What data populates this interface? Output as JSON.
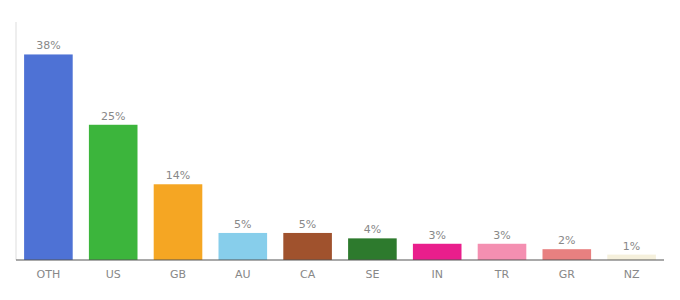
{
  "chart_data": {
    "type": "bar",
    "categories": [
      "OTH",
      "US",
      "GB",
      "AU",
      "CA",
      "SE",
      "IN",
      "TR",
      "GR",
      "NZ"
    ],
    "values": [
      38,
      25,
      14,
      5,
      5,
      4,
      3,
      3,
      2,
      1
    ],
    "value_labels": [
      "38%",
      "25%",
      "14%",
      "5%",
      "5%",
      "4%",
      "3%",
      "3%",
      "2%",
      "1%"
    ],
    "colors": [
      "#4e72d5",
      "#3cb53c",
      "#f5a623",
      "#87ceeb",
      "#a0522d",
      "#2d7a2d",
      "#e91e8c",
      "#f48fb1",
      "#e88080",
      "#f5f0dc"
    ],
    "ylim": [
      0,
      44
    ],
    "data_labels": true,
    "tick_labels": "x",
    "grid": false
  }
}
